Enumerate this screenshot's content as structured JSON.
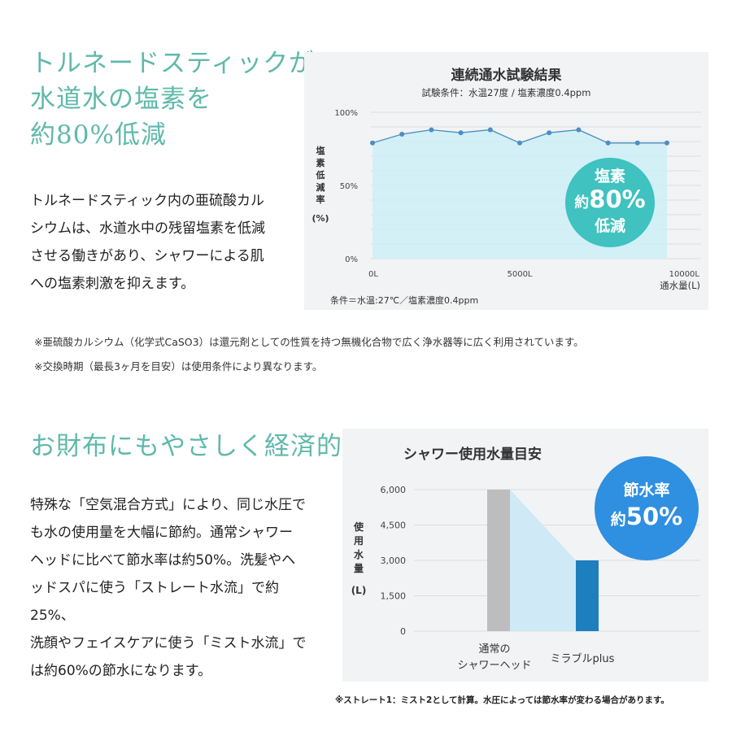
{
  "section1": {
    "heading": [
      "トルネードスティックが",
      "水道水の塩素を",
      "約80%低減"
    ],
    "body": [
      "トルネードスティック内の亜硫酸カル",
      "シウムは、水道水中の残留塩素を低減",
      "させる働きがあり、シャワーによる肌",
      "への塩素刺激を抑えます。"
    ],
    "notes": [
      "※亜硫酸カルシウム（化学式CaSO3）は還元剤としての性質を持つ無機化合物で広く浄水器等に広く利用されています。",
      "※交換時期（最長3ヶ月を目安）は使用条件により異なります。"
    ]
  },
  "chart1": {
    "title": "連続通水試験結果",
    "subtitle": "試験条件：水温27度 / 塩素濃度0.4ppm",
    "ylabel_chars": [
      "塩",
      "素",
      "低",
      "減",
      "率"
    ],
    "ylabel_unit": "(%)",
    "x_unit": "通水量(L)",
    "footnote": "条件＝水温:27℃／塩素濃度0.4ppm",
    "badge": {
      "line1": "塩素",
      "prefix": "約",
      "value": "80%",
      "line3": "低減",
      "color": "#3fc2c0"
    }
  },
  "section2": {
    "heading": "お財布にもやさしく経済的",
    "body": [
      "特殊な「空気混合方式」により、同じ水圧で",
      "も水の使用量を大幅に節約。通常シャワー",
      "ヘッドに比べて節水率は約50%。洗髪やヘ",
      "ッドスパに使う「ストレート水流」で約25%、",
      "洗顔やフェイスケアに使う「ミスト水流」で",
      "は約60%の節水になります。"
    ],
    "note": "※ストレート1：ミスト2として計算。水圧によっては節水率が変わる場合があります。"
  },
  "chart2": {
    "title": "シャワー使用水量目安",
    "ylabel_chars": [
      "使",
      "用",
      "水",
      "量"
    ],
    "ylabel_unit": "(L)",
    "badge": {
      "line1": "節水率",
      "prefix": "約",
      "value": "50%",
      "color": "#2f8fe0"
    },
    "cat1_lines": [
      "通常の",
      "シャワーヘッド"
    ]
  },
  "chart_data": [
    {
      "type": "line",
      "x": [
        0,
        1000,
        2000,
        3000,
        4000,
        5000,
        6000,
        7000,
        8000,
        9000,
        10000
      ],
      "values": [
        79,
        85,
        88,
        86,
        88,
        79,
        86,
        88,
        79,
        79,
        79
      ],
      "ylim": [
        0,
        100
      ],
      "yticks": [
        "100%",
        "50%",
        "0%"
      ],
      "xticks": [
        "0L",
        "5000L",
        "10000L"
      ],
      "color": "#4a8ec4",
      "fill": "#cdeef6"
    },
    {
      "type": "bar",
      "categories": [
        "通常のシャワーヘッド",
        "ミラブルplus"
      ],
      "values": [
        6000,
        3000
      ],
      "ylim": [
        0,
        6000
      ],
      "yticks": [
        "6,000",
        "4,500",
        "3,000",
        "1,500",
        "0"
      ],
      "colors": [
        "#bdbdbd",
        "#1e7fbf"
      ]
    }
  ]
}
